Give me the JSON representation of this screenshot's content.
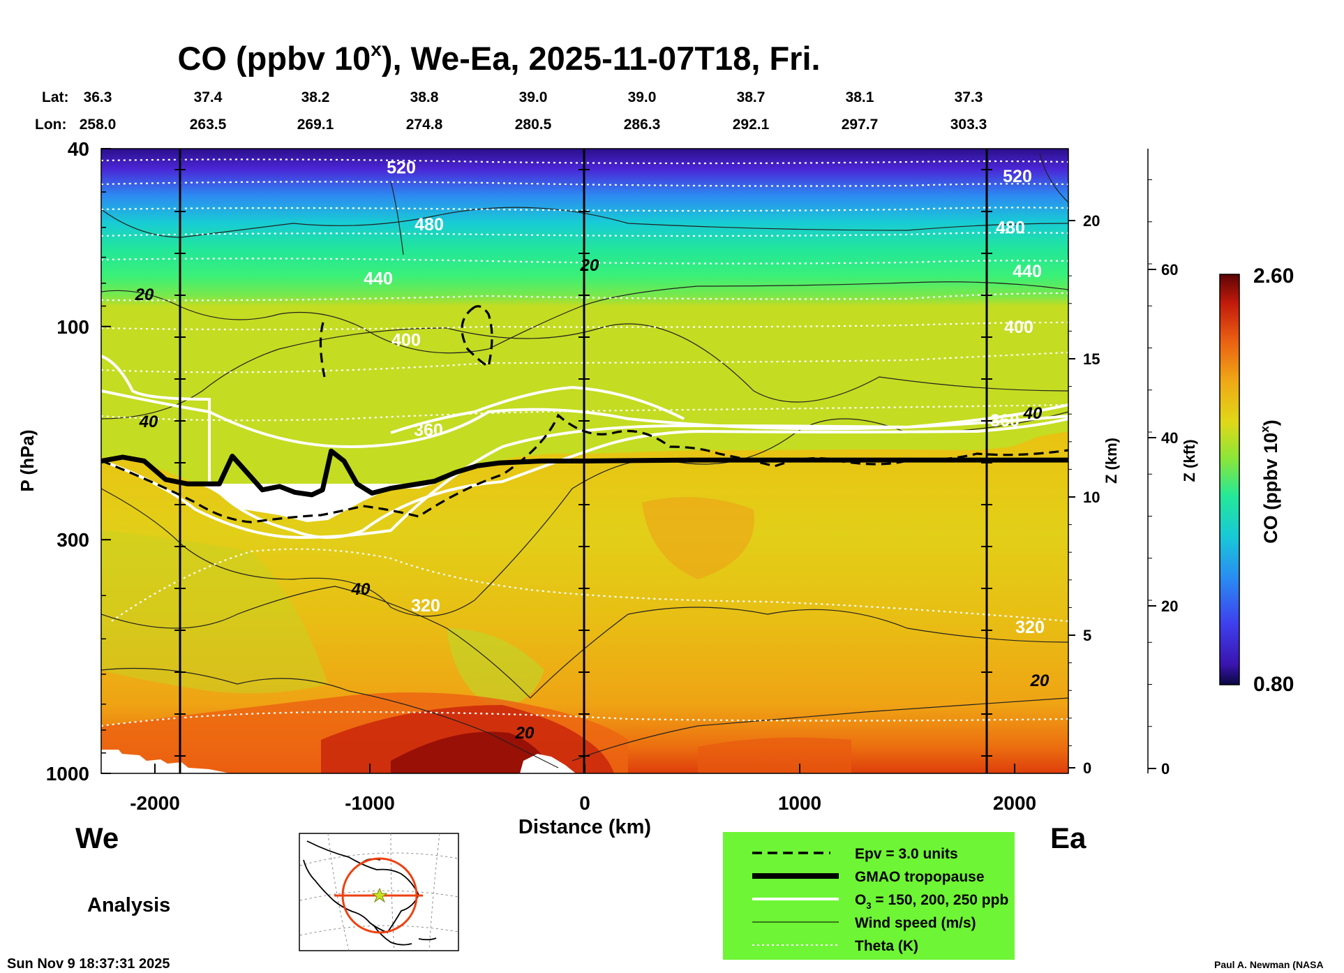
{
  "title": "CO (ppbv 10",
  "title_sup": "x",
  "title_rest": "), We-Ea, 2025-11-07T18, Fri.",
  "lat_label": "Lat:",
  "lon_label": "Lon:",
  "lat": [
    "36.3",
    "37.4",
    "38.2",
    "38.8",
    "39.0",
    "39.0",
    "38.7",
    "38.1",
    "37.3"
  ],
  "lon": [
    "258.0",
    "263.5",
    "269.1",
    "274.8",
    "280.5",
    "286.3",
    "292.1",
    "297.7",
    "303.3"
  ],
  "left_axis_label": "P (hPa)",
  "p_ticks": [
    "40",
    "100",
    "300",
    "1000"
  ],
  "z_km_label": "Z (km)",
  "z_km_ticks": [
    "20",
    "15",
    "10",
    "5",
    "0"
  ],
  "z_kft_label": "Z (kft)",
  "z_kft_ticks": [
    "60",
    "40",
    "20",
    "0"
  ],
  "x_ticks": [
    "-2000",
    "-1000",
    "0",
    "1000",
    "2000"
  ],
  "x_label": "Distance (km)",
  "left_end": "We",
  "right_end": "Ea",
  "analysis": "Analysis",
  "timestamp": "Sun Nov  9 18:37:31 2025",
  "credit": "Paul A. Newman (NASA",
  "colorbar": {
    "label": "CO (ppbv 10",
    "label_sup": "x",
    "label_end": ")",
    "max": "2.60",
    "min": "0.80"
  },
  "legend": {
    "epv": "Epv = 3.0 units",
    "tropopause": "GMAO tropopause",
    "o3": "O",
    "o3_sub": "3",
    "o3_rest": " = 150, 200, 250 ppb",
    "wind": "Wind speed (m/s)",
    "theta": "Theta (K)"
  },
  "chart_data": {
    "type": "heatmap",
    "title": "CO (ppbv 10^x), We-Ea, 2025-11-07T18, Fri.",
    "xlabel": "Distance (km)",
    "ylabel": "P (hPa)",
    "xlim": [
      -2250,
      2250
    ],
    "ylim": [
      1000,
      40
    ],
    "y_scale": "log",
    "colorbar_range": [
      0.8,
      2.6
    ],
    "colors": [
      "#1a0a5c",
      "#3e1fd2",
      "#2a7cf0",
      "#19c8d8",
      "#2ff090",
      "#9ae636",
      "#e8d415",
      "#f0a814",
      "#e65a10",
      "#c41c0c",
      "#6a0606"
    ],
    "theta_contours_K": [
      {
        "label": "520",
        "p": 44
      },
      {
        "label": "480",
        "p": 54
      },
      {
        "label": "440",
        "p": 73
      },
      {
        "label": "400",
        "p": 105
      },
      {
        "label": "360",
        "p": 170
      },
      {
        "label": "320",
        "p": 395
      }
    ],
    "wind_labels_m_s": [
      {
        "label": "20",
        "x": -2000,
        "p": 90
      },
      {
        "label": "20",
        "x": 0,
        "p": 73
      },
      {
        "label": "40",
        "x": -2000,
        "p": 178
      },
      {
        "label": "40",
        "x": -1000,
        "p": 430
      },
      {
        "label": "40",
        "x": 2100,
        "p": 170
      },
      {
        "label": "20",
        "x": 2050,
        "p": 600
      },
      {
        "label": "20",
        "x": -300,
        "p": 840
      }
    ],
    "tropopause_hPa": [
      {
        "x": -2250,
        "p": 200
      },
      {
        "x": -2150,
        "p": 196
      },
      {
        "x": -2050,
        "p": 200
      },
      {
        "x": -1950,
        "p": 220
      },
      {
        "x": -1850,
        "p": 225
      },
      {
        "x": -1700,
        "p": 225
      },
      {
        "x": -1640,
        "p": 195
      },
      {
        "x": -1580,
        "p": 210
      },
      {
        "x": -1500,
        "p": 232
      },
      {
        "x": -1420,
        "p": 228
      },
      {
        "x": -1350,
        "p": 235
      },
      {
        "x": -1270,
        "p": 238
      },
      {
        "x": -1220,
        "p": 232
      },
      {
        "x": -1180,
        "p": 190
      },
      {
        "x": -1120,
        "p": 200
      },
      {
        "x": -1060,
        "p": 225
      },
      {
        "x": -990,
        "p": 236
      },
      {
        "x": -900,
        "p": 230
      },
      {
        "x": -800,
        "p": 226
      },
      {
        "x": -700,
        "p": 222
      },
      {
        "x": -600,
        "p": 212
      },
      {
        "x": -500,
        "p": 205
      },
      {
        "x": -400,
        "p": 202
      },
      {
        "x": -200,
        "p": 200
      },
      {
        "x": 0,
        "p": 200
      },
      {
        "x": 500,
        "p": 199
      },
      {
        "x": 1000,
        "p": 199
      },
      {
        "x": 1500,
        "p": 199
      },
      {
        "x": 2250,
        "p": 199
      }
    ]
  }
}
